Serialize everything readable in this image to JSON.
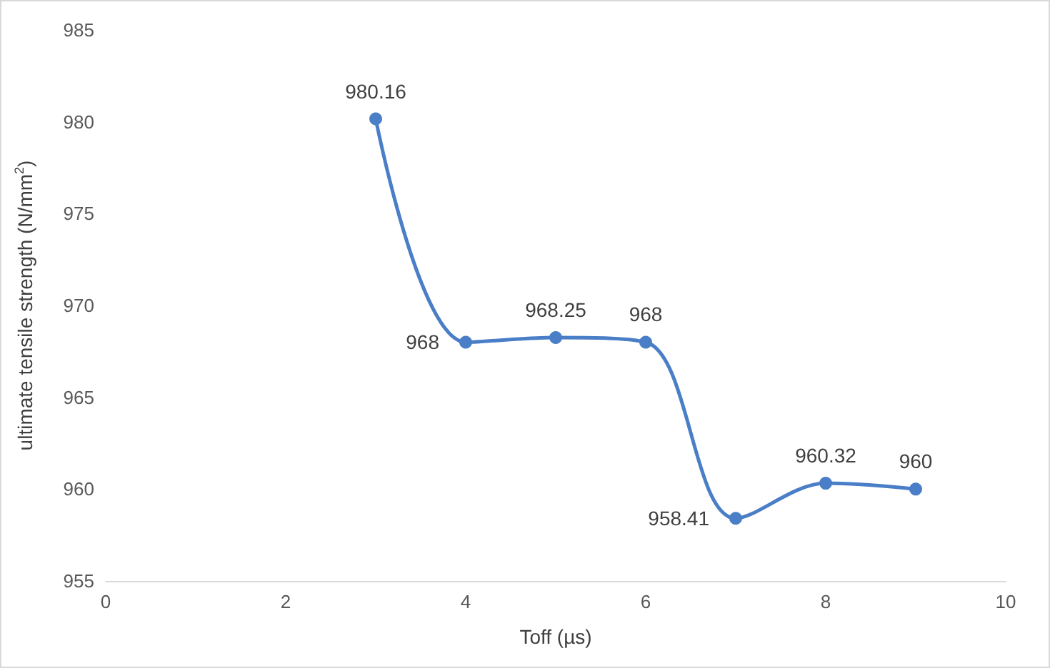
{
  "chart_data": {
    "type": "line",
    "xlabel": "Toff (µs)",
    "ylabel": "ultimate tensile strength (N/mm$^{2}$)",
    "x": [
      3,
      4,
      5,
      6,
      7,
      8,
      9
    ],
    "series": [
      {
        "color": "#4a7ec7",
        "values": [
          980.16,
          968,
          968.25,
          968,
          958.41,
          960.32,
          960
        ]
      }
    ],
    "xlim": [
      0,
      10
    ],
    "xticks": [
      0,
      2,
      4,
      6,
      8,
      10
    ],
    "ylim": [
      955,
      985
    ],
    "yticks": [
      955,
      960,
      965,
      970,
      975,
      980,
      985
    ],
    "data_labels": true,
    "marker": "circle",
    "line_style": "solid"
  }
}
